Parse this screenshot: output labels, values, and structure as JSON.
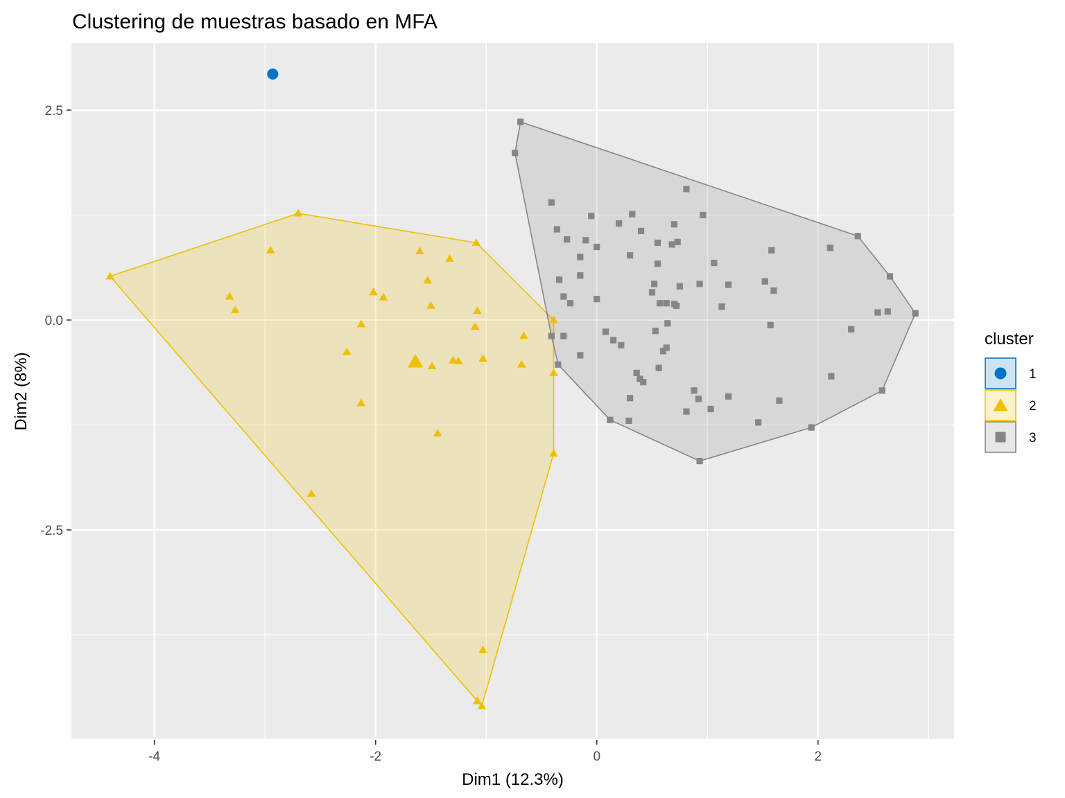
{
  "chart_data": {
    "type": "scatter",
    "title": "Clustering de muestras basado en MFA",
    "xlabel": "Dim1 (12.3%)",
    "ylabel": "Dim2 (8%)",
    "xlim": [
      -4.75,
      3.23
    ],
    "ylim": [
      -5.0,
      3.3
    ],
    "x_ticks": [
      -4,
      -2,
      0,
      2
    ],
    "x_tick_labels": [
      "-4",
      "-2",
      "0",
      "2"
    ],
    "y_ticks": [
      2.5,
      0.0,
      -2.5
    ],
    "y_tick_labels": [
      "2.5",
      "0.0",
      "-2.5"
    ],
    "grid": true,
    "legend": {
      "title": "cluster",
      "position": "right"
    },
    "series": [
      {
        "name": "1",
        "color": "#0073C2",
        "marker": "circle",
        "hull": false,
        "points": [
          [
            -2.93,
            2.93
          ]
        ],
        "centers": []
      },
      {
        "name": "2",
        "color": "#EFC000",
        "marker": "triangle",
        "hull": true,
        "points": [
          [
            -4.4,
            0.52
          ],
          [
            -2.7,
            1.27
          ],
          [
            -2.95,
            0.83
          ],
          [
            -3.32,
            0.28
          ],
          [
            -3.27,
            0.12
          ],
          [
            -2.02,
            0.33
          ],
          [
            -1.93,
            0.27
          ],
          [
            -2.13,
            -0.05
          ],
          [
            -2.26,
            -0.38
          ],
          [
            -2.13,
            -0.99
          ],
          [
            -1.6,
            0.82
          ],
          [
            -1.53,
            0.47
          ],
          [
            -1.5,
            0.17
          ],
          [
            -1.33,
            0.73
          ],
          [
            -1.09,
            0.92
          ],
          [
            -1.08,
            0.11
          ],
          [
            -1.1,
            -0.08
          ],
          [
            -1.49,
            -0.55
          ],
          [
            -1.3,
            -0.48
          ],
          [
            -1.25,
            -0.49
          ],
          [
            -1.03,
            -0.46
          ],
          [
            -0.66,
            -0.19
          ],
          [
            -0.68,
            -0.53
          ],
          [
            -0.39,
            0.0
          ],
          [
            -0.39,
            -0.63
          ],
          [
            -0.39,
            -1.59
          ],
          [
            -1.44,
            -1.35
          ],
          [
            -2.58,
            -2.07
          ],
          [
            -1.03,
            -3.93
          ],
          [
            -1.08,
            -4.54
          ],
          [
            -1.04,
            -4.6
          ]
        ],
        "centers": [
          [
            -1.64,
            -0.5
          ]
        ]
      },
      {
        "name": "3",
        "color": "#868686",
        "marker": "square",
        "hull": true,
        "points": [
          [
            -0.69,
            2.36
          ],
          [
            -0.74,
            1.99
          ],
          [
            -0.41,
            1.4
          ],
          [
            -0.36,
            1.08
          ],
          [
            -0.27,
            0.96
          ],
          [
            -0.1,
            0.95
          ],
          [
            -0.05,
            1.24
          ],
          [
            0.0,
            0.87
          ],
          [
            -0.15,
            0.75
          ],
          [
            -0.34,
            0.48
          ],
          [
            -0.15,
            0.53
          ],
          [
            -0.3,
            0.28
          ],
          [
            -0.24,
            0.2
          ],
          [
            0.0,
            0.25
          ],
          [
            0.2,
            1.15
          ],
          [
            0.32,
            1.26
          ],
          [
            0.4,
            1.06
          ],
          [
            0.55,
            0.92
          ],
          [
            0.7,
            1.14
          ],
          [
            0.81,
            1.56
          ],
          [
            0.96,
            1.25
          ],
          [
            0.68,
            0.9
          ],
          [
            0.73,
            0.93
          ],
          [
            0.3,
            0.77
          ],
          [
            0.55,
            0.67
          ],
          [
            0.52,
            0.43
          ],
          [
            0.5,
            0.33
          ],
          [
            0.57,
            0.2
          ],
          [
            0.63,
            0.2
          ],
          [
            0.7,
            0.19
          ],
          [
            0.72,
            0.17
          ],
          [
            0.75,
            0.4
          ],
          [
            0.93,
            0.43
          ],
          [
            1.06,
            0.68
          ],
          [
            1.19,
            0.42
          ],
          [
            1.13,
            0.16
          ],
          [
            1.58,
            0.83
          ],
          [
            1.52,
            0.46
          ],
          [
            1.6,
            0.35
          ],
          [
            1.57,
            -0.06
          ],
          [
            2.11,
            0.86
          ],
          [
            2.36,
            1.0
          ],
          [
            2.65,
            0.52
          ],
          [
            2.88,
            0.08
          ],
          [
            2.63,
            0.1
          ],
          [
            2.54,
            0.09
          ],
          [
            2.3,
            -0.11
          ],
          [
            2.58,
            -0.84
          ],
          [
            2.12,
            -0.67
          ],
          [
            1.94,
            -1.28
          ],
          [
            1.65,
            -0.96
          ],
          [
            1.46,
            -1.22
          ],
          [
            1.19,
            -0.91
          ],
          [
            1.03,
            -1.06
          ],
          [
            0.92,
            -0.94
          ],
          [
            0.88,
            -0.84
          ],
          [
            0.81,
            -1.09
          ],
          [
            0.93,
            -1.68
          ],
          [
            0.56,
            -0.57
          ],
          [
            0.6,
            -0.37
          ],
          [
            0.63,
            -0.33
          ],
          [
            0.64,
            -0.04
          ],
          [
            0.53,
            -0.13
          ],
          [
            0.36,
            -0.63
          ],
          [
            0.39,
            -0.7
          ],
          [
            0.42,
            -0.74
          ],
          [
            0.3,
            -0.93
          ],
          [
            0.29,
            -1.2
          ],
          [
            0.12,
            -1.19
          ],
          [
            0.08,
            -0.14
          ],
          [
            0.15,
            -0.24
          ],
          [
            0.22,
            -0.3
          ],
          [
            -0.35,
            -0.53
          ],
          [
            -0.41,
            -0.19
          ],
          [
            -0.3,
            -0.19
          ],
          [
            -0.15,
            -0.42
          ]
        ],
        "centers": []
      }
    ]
  }
}
